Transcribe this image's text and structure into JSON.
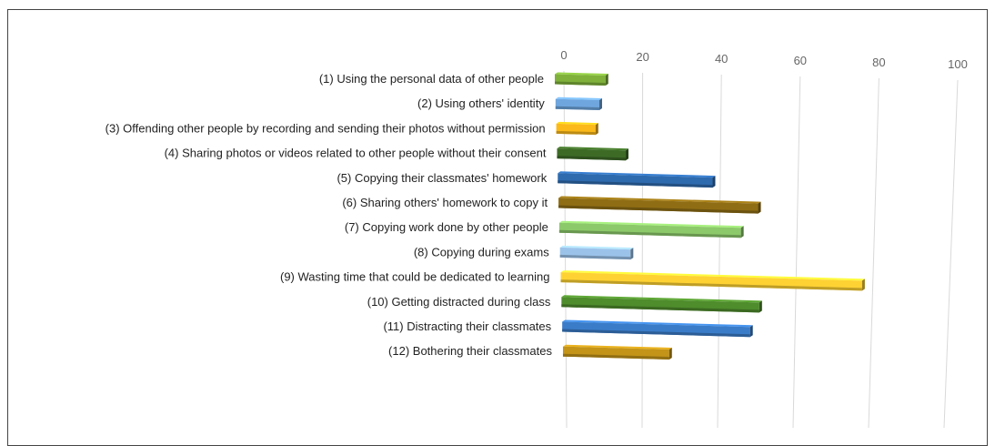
{
  "chart_data": {
    "type": "bar",
    "orientation": "horizontal",
    "style": "3d-perspective",
    "categories": [
      "(1) Using the personal data of other people",
      "(2) Using others' identity",
      "(3) Offending other people by recording and sending their photos without permission",
      "(4) Sharing photos or videos related to other people without their consent",
      "(5) Copying their classmates' homework",
      "(6) Sharing others' homework to copy it",
      "(7) Copying work done by other people",
      "(8) Copying during exams",
      "(9) Wasting time that could be dedicated to learning",
      "(10)  Getting distracted during class",
      "(11) Distracting their classmates",
      "(12) Bothering their classmates"
    ],
    "values": [
      18,
      15,
      13,
      22,
      48,
      60,
      53,
      20,
      83,
      53,
      49,
      27
    ],
    "colors": [
      "#7fb13b",
      "#6fa6de",
      "#fbb91a",
      "#3d6b26",
      "#2e6aae",
      "#8f6d14",
      "#8cc96a",
      "#9bc3ea",
      "#fed233",
      "#4e8c2c",
      "#3a7cc8",
      "#c39418"
    ],
    "xticks": [
      0,
      20,
      40,
      60,
      80,
      100
    ],
    "xlim": [
      0,
      100
    ],
    "grid": true,
    "legend": "none",
    "title": "",
    "xlabel": "",
    "ylabel": ""
  }
}
